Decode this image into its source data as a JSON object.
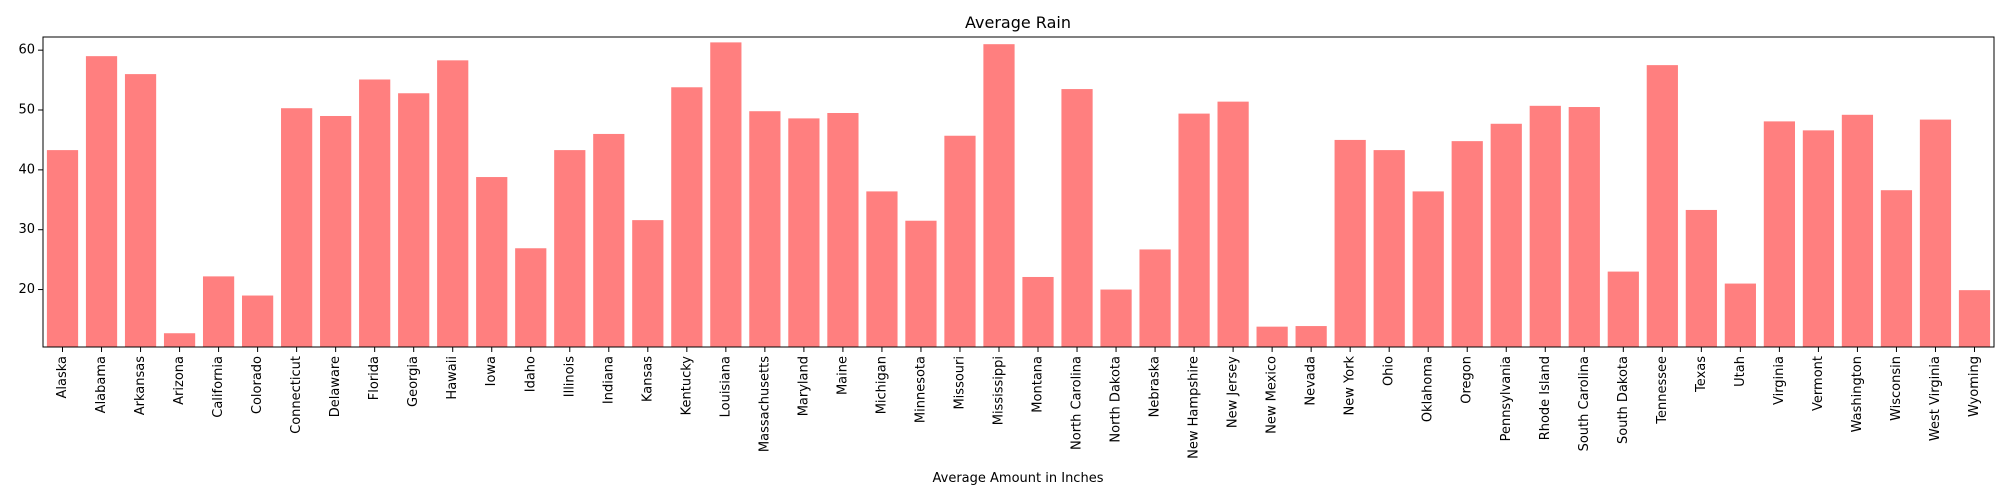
{
  "chart_data": {
    "type": "bar",
    "title": "Average Rain",
    "xlabel": "Average Amount in Inches",
    "ylabel": "",
    "ylim": [
      10.4,
      62.2
    ],
    "yticks": [
      20,
      30,
      40,
      50,
      60
    ],
    "bar_color": "#ff7f7f",
    "grid": false,
    "categories": [
      "Alaska",
      "Alabama",
      "Arkansas",
      "Arizona",
      "California",
      "Colorado",
      "Connecticut",
      "Delaware",
      "Florida",
      "Georgia",
      "Hawaii",
      "Iowa",
      "Idaho",
      "Illinois",
      "Indiana",
      "Kansas",
      "Kentucky",
      "Louisiana",
      "Massachusetts",
      "Maryland",
      "Maine",
      "Michigan",
      "Minnesota",
      "Missouri",
      "Mississippi",
      "Montana",
      "North Carolina",
      "North Dakota",
      "Nebraska",
      "New Hampshire",
      "New Jersey",
      "New Mexico",
      "Nevada",
      "New York",
      "Ohio",
      "Oklahoma",
      "Oregon",
      "Pennsylvania",
      "Rhode Island",
      "South Carolina",
      "South Dakota",
      "Tennessee",
      "Texas",
      "Utah",
      "Virginia",
      "Vermont",
      "Washington",
      "Wisconsin",
      "West Virginia",
      "Wyoming"
    ],
    "values": [
      43.3,
      59.0,
      56.0,
      12.7,
      22.2,
      19.0,
      50.3,
      49.0,
      55.1,
      52.8,
      58.3,
      38.8,
      26.9,
      43.3,
      46.0,
      31.6,
      53.8,
      61.3,
      49.8,
      48.6,
      49.5,
      36.4,
      31.5,
      45.7,
      61.0,
      22.1,
      53.5,
      20.0,
      26.7,
      49.4,
      51.4,
      13.8,
      13.9,
      45.0,
      43.3,
      36.4,
      44.8,
      47.7,
      50.7,
      50.5,
      23.0,
      57.5,
      33.3,
      21.0,
      48.1,
      46.6,
      49.2,
      36.6,
      48.4,
      19.9
    ]
  }
}
